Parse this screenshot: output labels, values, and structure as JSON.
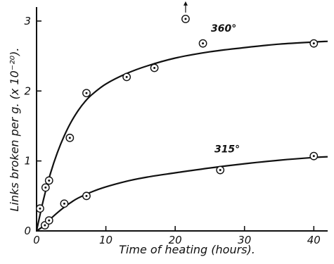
{
  "chart_data": {
    "type": "scatter",
    "xlabel": "Time of heating (hours).",
    "ylabel": "Links broken per g. (x 10⁻²⁰).",
    "xlim": [
      0,
      42
    ],
    "ylim": [
      0,
      3.2
    ],
    "x_ticks": [
      "0",
      "10",
      "20",
      "30",
      "40"
    ],
    "y_ticks": [
      "0",
      "1",
      "2",
      "3"
    ],
    "grid": false,
    "series": [
      {
        "name": "360°",
        "points": [
          {
            "x": 0.5,
            "y": 0.32
          },
          {
            "x": 1.3,
            "y": 0.62
          },
          {
            "x": 1.8,
            "y": 0.72
          },
          {
            "x": 4.8,
            "y": 1.33
          },
          {
            "x": 7.2,
            "y": 1.97
          },
          {
            "x": 13,
            "y": 2.2
          },
          {
            "x": 17,
            "y": 2.33
          },
          {
            "x": 21.5,
            "y": 3.03
          },
          {
            "x": 24,
            "y": 2.68
          },
          {
            "x": 40,
            "y": 2.68
          }
        ],
        "curve": [
          {
            "x": 0,
            "y": 0
          },
          {
            "x": 1,
            "y": 0.45
          },
          {
            "x": 2,
            "y": 0.82
          },
          {
            "x": 3,
            "y": 1.12
          },
          {
            "x": 4,
            "y": 1.36
          },
          {
            "x": 5,
            "y": 1.56
          },
          {
            "x": 6,
            "y": 1.72
          },
          {
            "x": 7,
            "y": 1.85
          },
          {
            "x": 8,
            "y": 1.95
          },
          {
            "x": 10,
            "y": 2.1
          },
          {
            "x": 13,
            "y": 2.25
          },
          {
            "x": 16,
            "y": 2.36
          },
          {
            "x": 20,
            "y": 2.47
          },
          {
            "x": 25,
            "y": 2.56
          },
          {
            "x": 30,
            "y": 2.62
          },
          {
            "x": 35,
            "y": 2.67
          },
          {
            "x": 40,
            "y": 2.7
          },
          {
            "x": 42,
            "y": 2.71
          }
        ]
      },
      {
        "name": "315°",
        "points": [
          {
            "x": 1.2,
            "y": 0.08
          },
          {
            "x": 1.8,
            "y": 0.15
          },
          {
            "x": 4,
            "y": 0.39
          },
          {
            "x": 7.2,
            "y": 0.5
          },
          {
            "x": 26.5,
            "y": 0.87
          },
          {
            "x": 40,
            "y": 1.07
          }
        ],
        "curve": [
          {
            "x": 0,
            "y": 0
          },
          {
            "x": 1,
            "y": 0.07
          },
          {
            "x": 2,
            "y": 0.17
          },
          {
            "x": 3,
            "y": 0.26
          },
          {
            "x": 4,
            "y": 0.34
          },
          {
            "x": 5,
            "y": 0.41
          },
          {
            "x": 6,
            "y": 0.47
          },
          {
            "x": 8,
            "y": 0.56
          },
          {
            "x": 10,
            "y": 0.63
          },
          {
            "x": 13,
            "y": 0.71
          },
          {
            "x": 16,
            "y": 0.77
          },
          {
            "x": 20,
            "y": 0.83
          },
          {
            "x": 25,
            "y": 0.9
          },
          {
            "x": 30,
            "y": 0.96
          },
          {
            "x": 35,
            "y": 1.01
          },
          {
            "x": 40,
            "y": 1.05
          },
          {
            "x": 42,
            "y": 1.06
          }
        ]
      }
    ],
    "annotations": [
      {
        "text": "360°",
        "series": "360°",
        "x": 27,
        "y": 2.85
      },
      {
        "text": "315°",
        "series": "315°",
        "x": 27.5,
        "y": 1.12
      },
      {
        "type": "arrow-up",
        "note": "off-scale point",
        "x": 21.5,
        "y": 3.03
      }
    ]
  }
}
